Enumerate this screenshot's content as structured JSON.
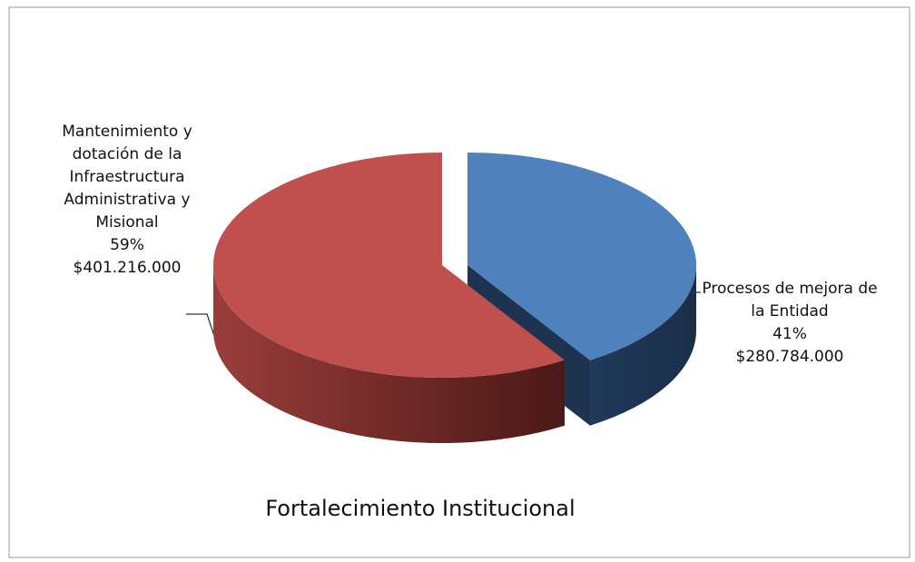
{
  "chart_data": {
    "type": "pie",
    "title": "Fortalecimiento Institucional",
    "categories": [
      "Procesos de mejora de la Entidad",
      "Mantenimiento y dotación de la Infraestructura Administrativa y Misional"
    ],
    "values": [
      41,
      59
    ],
    "value_labels": [
      "41%",
      "59%"
    ],
    "amounts": [
      "$280.784.000",
      "$401.216.000"
    ],
    "colors": [
      "#4f81bd",
      "#c0504d"
    ]
  }
}
